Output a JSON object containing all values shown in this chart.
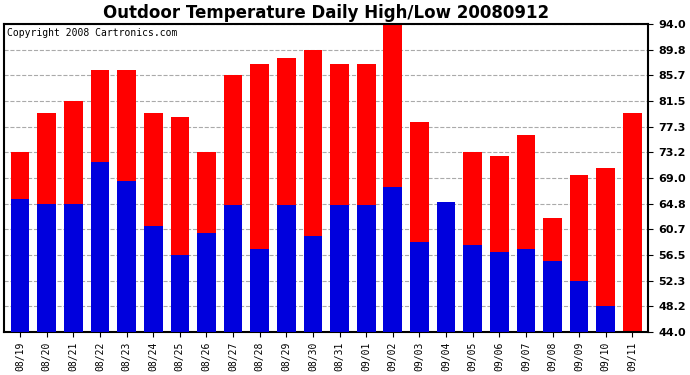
{
  "title": "Outdoor Temperature Daily High/Low 20080912",
  "copyright": "Copyright 2008 Cartronics.com",
  "dates": [
    "08/19",
    "08/20",
    "08/21",
    "08/22",
    "08/23",
    "08/24",
    "08/25",
    "08/26",
    "08/27",
    "08/28",
    "08/29",
    "08/30",
    "08/31",
    "09/01",
    "09/02",
    "09/03",
    "09/04",
    "09/05",
    "09/06",
    "09/07",
    "09/08",
    "09/09",
    "09/10",
    "09/11"
  ],
  "highs": [
    73.2,
    79.5,
    81.5,
    86.5,
    86.5,
    79.5,
    78.8,
    73.2,
    85.7,
    87.5,
    88.5,
    89.8,
    87.5,
    87.5,
    94.0,
    78.0,
    65.0,
    73.2,
    72.5,
    76.0,
    62.5,
    69.5,
    70.5,
    79.5
  ],
  "lows": [
    65.5,
    64.8,
    64.8,
    71.5,
    68.5,
    61.2,
    56.5,
    60.0,
    64.5,
    57.5,
    64.5,
    59.5,
    64.5,
    64.5,
    67.5,
    58.5,
    65.0,
    58.0,
    57.0,
    57.5,
    55.5,
    52.3,
    48.2,
    44.0
  ],
  "high_color": "#ff0000",
  "low_color": "#0000dd",
  "bg_color": "#ffffff",
  "plot_bg_color": "#ffffff",
  "grid_color": "#aaaaaa",
  "ylim": [
    44.0,
    94.0
  ],
  "yticks": [
    44.0,
    48.2,
    52.3,
    56.5,
    60.7,
    64.8,
    69.0,
    73.2,
    77.3,
    81.5,
    85.7,
    89.8,
    94.0
  ],
  "title_fontsize": 12,
  "copyright_fontsize": 7,
  "bar_width": 0.7
}
